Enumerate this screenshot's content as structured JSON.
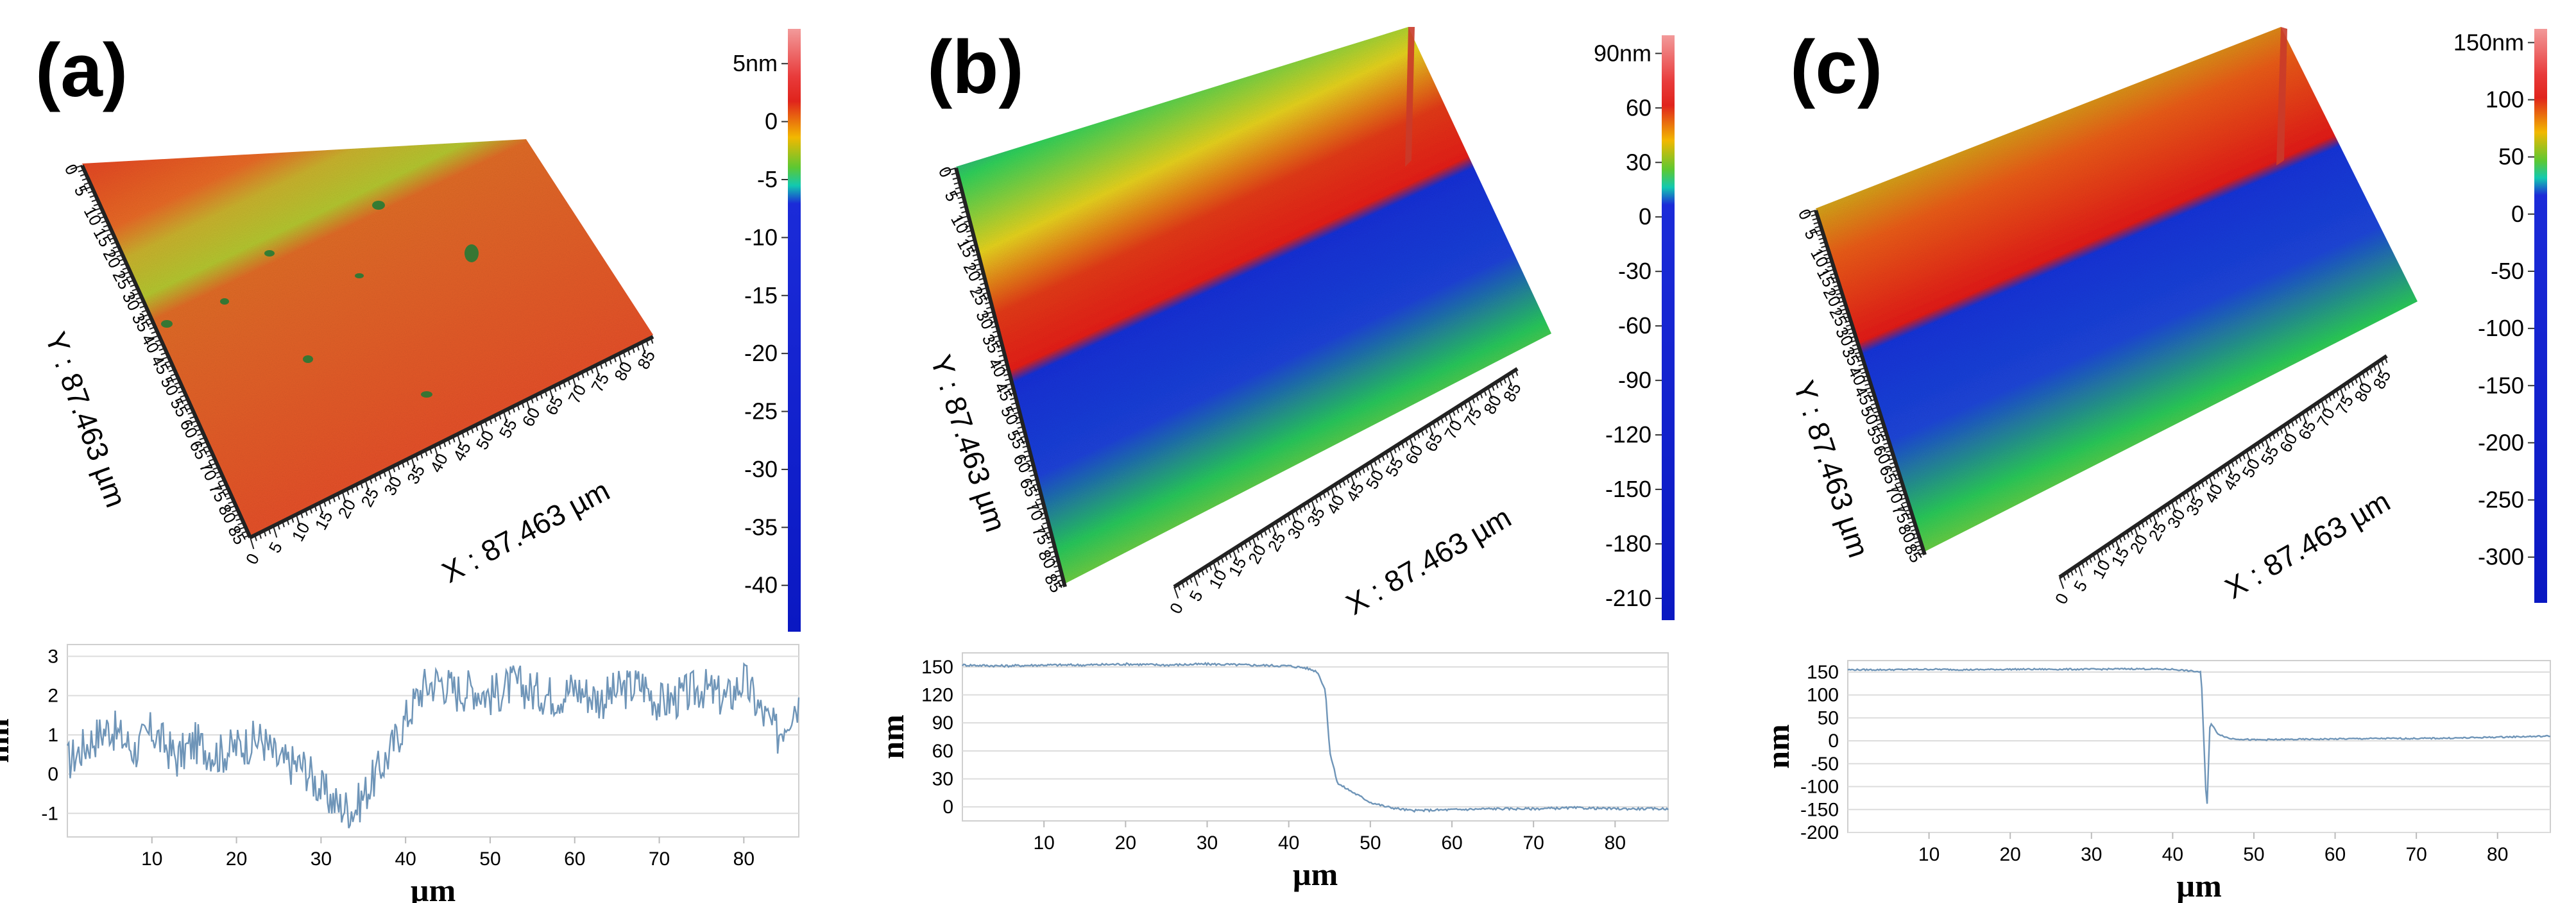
{
  "chart_data": [
    {
      "type": "surface",
      "panel_label": "(a)",
      "x_axis_label": "X : 87.463 µm",
      "y_axis_label": "Y : 87.463 µm",
      "xy_ticks": [
        0,
        5,
        10,
        15,
        20,
        25,
        30,
        35,
        40,
        45,
        50,
        55,
        60,
        65,
        70,
        75,
        80,
        85
      ],
      "colorbar": {
        "unit": "nm",
        "ticks": [
          "5nm",
          "0",
          "-5",
          "-10",
          "-15",
          "-20",
          "-25",
          "-30",
          "-35",
          "-40"
        ],
        "tick_values": [
          5,
          0,
          -5,
          -10,
          -15,
          -20,
          -25,
          -30,
          -35,
          -40
        ],
        "range": [
          -44,
          8
        ]
      },
      "profile": {
        "type": "line",
        "xlabel": "µm",
        "ylabel": "nm",
        "xlim": [
          0,
          86.5
        ],
        "ylim": [
          -1.6,
          3.3
        ],
        "xticks": [
          10,
          20,
          30,
          40,
          50,
          60,
          70,
          80
        ],
        "yticks": [
          -1,
          0,
          1,
          2,
          3
        ],
        "anchors_x": [
          0,
          3,
          5,
          8,
          10,
          13,
          15,
          18,
          20,
          23,
          25,
          28,
          30,
          32,
          34,
          36,
          38,
          40,
          42,
          44,
          46,
          48,
          50,
          53,
          55,
          58,
          60,
          63,
          65,
          68,
          70,
          73,
          75,
          78,
          80,
          82,
          84,
          86
        ],
        "anchors_y": [
          0.3,
          0.9,
          1.2,
          0.6,
          1.1,
          0.4,
          0.8,
          0.5,
          0.7,
          0.9,
          0.3,
          0.2,
          -0.4,
          -0.8,
          -0.9,
          -0.2,
          0.5,
          1.4,
          2.2,
          2.4,
          2.1,
          2.2,
          2.0,
          2.3,
          2.1,
          2.0,
          2.2,
          1.9,
          2.1,
          2.3,
          1.8,
          2.0,
          2.2,
          1.9,
          2.4,
          1.6,
          1.0,
          1.8
        ],
        "noise": 0.55
      }
    },
    {
      "type": "surface",
      "panel_label": "(b)",
      "x_axis_label": "X : 87.463 µm",
      "y_axis_label": "Y : 87.463 µm",
      "xy_ticks": [
        0,
        5,
        10,
        15,
        20,
        25,
        30,
        35,
        40,
        45,
        50,
        55,
        60,
        65,
        70,
        75,
        80,
        85
      ],
      "colorbar": {
        "unit": "nm",
        "ticks": [
          "90nm",
          "60",
          "30",
          "0",
          "-30",
          "-60",
          "-90",
          "-120",
          "-150",
          "-180",
          "-210"
        ],
        "tick_values": [
          90,
          60,
          30,
          0,
          -30,
          -60,
          -90,
          -120,
          -150,
          -180,
          -210
        ],
        "range": [
          -222,
          100
        ]
      },
      "profile": {
        "type": "line",
        "xlabel": "µm",
        "ylabel": "nm",
        "xlim": [
          0,
          86.5
        ],
        "ylim": [
          -15,
          165
        ],
        "xticks": [
          10,
          20,
          30,
          40,
          50,
          60,
          70,
          80
        ],
        "yticks": [
          0,
          30,
          60,
          90,
          120,
          150
        ],
        "anchors_x": [
          0,
          5,
          10,
          15,
          20,
          25,
          30,
          35,
          40,
          42,
          43.5,
          44.5,
          45,
          46,
          48,
          50,
          52,
          55,
          60,
          65,
          70,
          75,
          80,
          86
        ],
        "anchors_y": [
          152,
          151,
          152,
          152,
          153,
          152,
          153,
          152,
          151,
          149,
          145,
          125,
          60,
          25,
          15,
          5,
          0,
          -4,
          -3,
          -2,
          -2,
          -1,
          -2,
          -2
        ],
        "noise": 1.2
      }
    },
    {
      "type": "surface",
      "panel_label": "(c)",
      "x_axis_label": "X : 87.463 µm",
      "y_axis_label": "Y : 87.463 µm",
      "xy_ticks": [
        0,
        5,
        10,
        15,
        20,
        25,
        30,
        35,
        40,
        45,
        50,
        55,
        60,
        65,
        70,
        75,
        80,
        85
      ],
      "colorbar": {
        "unit": "nm",
        "ticks": [
          "150nm",
          "100",
          "50",
          "0",
          "-50",
          "-100",
          "-150",
          "-200",
          "-250",
          "-300"
        ],
        "tick_values": [
          150,
          100,
          50,
          0,
          -50,
          -100,
          -150,
          -200,
          -250,
          -300
        ],
        "range": [
          -340,
          162
        ]
      },
      "profile": {
        "type": "line",
        "xlabel": "µm",
        "ylabel": "nm",
        "xlim": [
          0,
          86.5
        ],
        "ylim": [
          -200,
          175
        ],
        "xticks": [
          10,
          20,
          30,
          40,
          50,
          60,
          70,
          80
        ],
        "yticks": [
          150,
          100,
          50,
          0,
          -50,
          -100,
          -150,
          -200
        ],
        "anchors_x": [
          0,
          5,
          10,
          15,
          20,
          25,
          30,
          35,
          40,
          43.5,
          44.2,
          44.6,
          45.0,
          45.6,
          47,
          50,
          55,
          60,
          65,
          70,
          75,
          80,
          86
        ],
        "anchors_y": [
          155,
          155,
          156,
          155,
          156,
          156,
          156,
          157,
          156,
          150,
          -160,
          40,
          30,
          15,
          5,
          2,
          3,
          4,
          5,
          5,
          6,
          8,
          10
        ],
        "noise": 1.5
      }
    }
  ]
}
